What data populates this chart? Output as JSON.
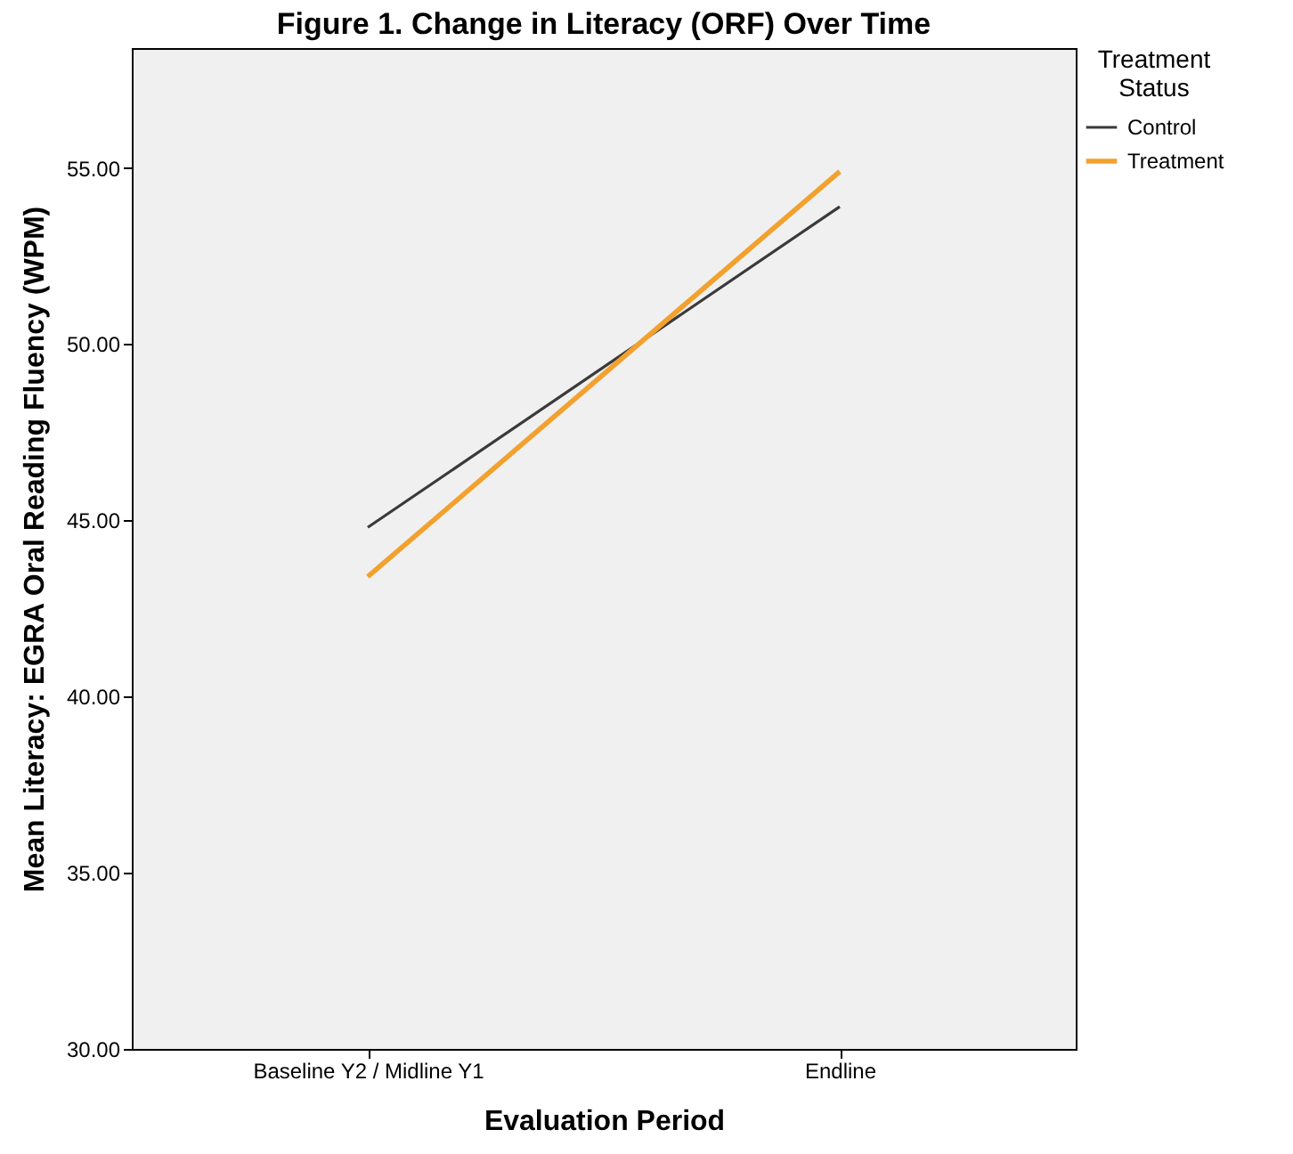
{
  "chart_data": {
    "type": "line",
    "title": "Figure 1. Change in Literacy  (ORF) Over Time",
    "xlabel": "Evaluation Period",
    "ylabel": "Mean Literacy: EGRA Oral Reading Fluency (WPM)",
    "legend_title": "Treatment Status",
    "categories": [
      "Baseline Y2 / Midline Y1",
      "Endline"
    ],
    "series": [
      {
        "name": "Control",
        "color": "#3a3a3a",
        "values": [
          44.8,
          53.9
        ]
      },
      {
        "name": "Treatment",
        "color": "#f2a12e",
        "values": [
          43.4,
          54.9
        ]
      }
    ],
    "ylim": [
      30,
      58.4
    ],
    "yticks": [
      {
        "value": 30,
        "label": "30.00"
      },
      {
        "value": 35,
        "label": "35.00"
      },
      {
        "value": 40,
        "label": "40.00"
      },
      {
        "value": 45,
        "label": "45.00"
      },
      {
        "value": 50,
        "label": "50.00"
      },
      {
        "value": 55,
        "label": "55.00"
      }
    ],
    "grid": false,
    "legend": "top right",
    "marker": "none",
    "line_style": "solid"
  }
}
